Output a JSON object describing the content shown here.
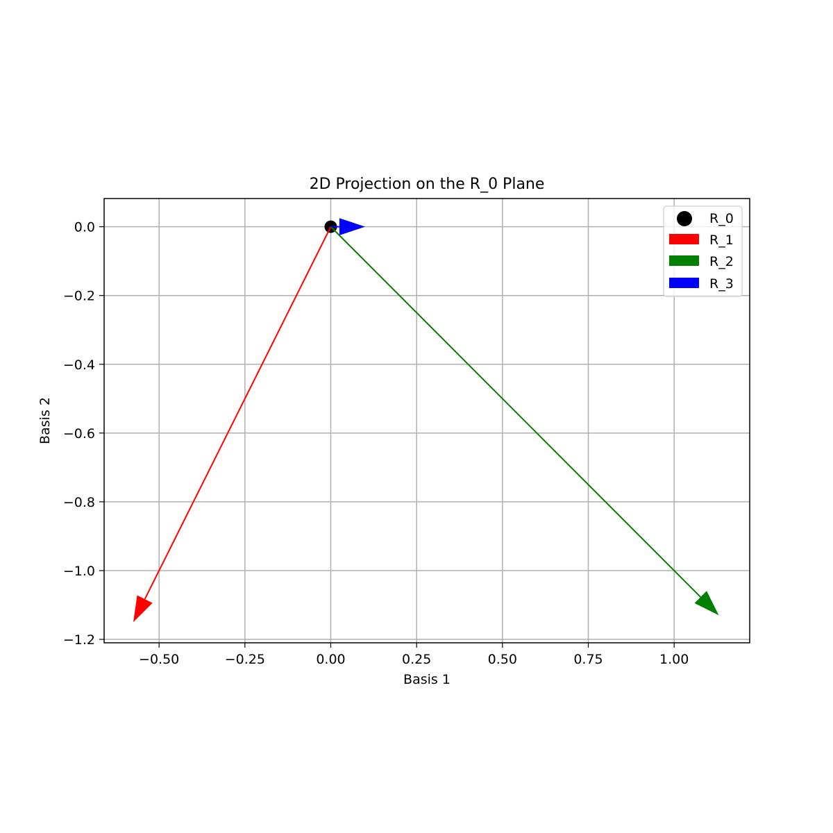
{
  "chart_data": {
    "type": "vector",
    "title": "2D Projection on the R_0 Plane",
    "xlabel": "Basis 1",
    "ylabel": "Basis 2",
    "xlim": [
      -0.66,
      1.22
    ],
    "ylim": [
      -1.21,
      0.082
    ],
    "xticks": [
      -0.5,
      -0.25,
      0.0,
      0.25,
      0.5,
      0.75,
      1.0
    ],
    "xtick_labels": [
      "−0.50",
      "−0.25",
      "0.00",
      "0.25",
      "0.50",
      "0.75",
      "1.00"
    ],
    "yticks": [
      0.0,
      -0.2,
      -0.4,
      -0.6,
      -0.8,
      -1.0,
      -1.2
    ],
    "ytick_labels": [
      "0.0",
      "−0.2",
      "−0.4",
      "−0.6",
      "−0.8",
      "−1.0",
      "−1.2"
    ],
    "grid": true,
    "legend_position": "top-right",
    "point": {
      "name": "R_0",
      "x": 0.0,
      "y": 0.0,
      "color": "#000000"
    },
    "vectors": [
      {
        "name": "R_1",
        "x0": 0.0,
        "y0": 0.0,
        "dx": -0.575,
        "dy": -1.15,
        "color": "#ff0000"
      },
      {
        "name": "R_2",
        "x0": 0.0,
        "y0": 0.0,
        "dx": 1.13,
        "dy": -1.13,
        "color": "#008000"
      },
      {
        "name": "R_3",
        "x0": 0.0,
        "y0": 0.0,
        "dx": 0.1,
        "dy": 0.0,
        "color": "#0000ff"
      }
    ]
  }
}
